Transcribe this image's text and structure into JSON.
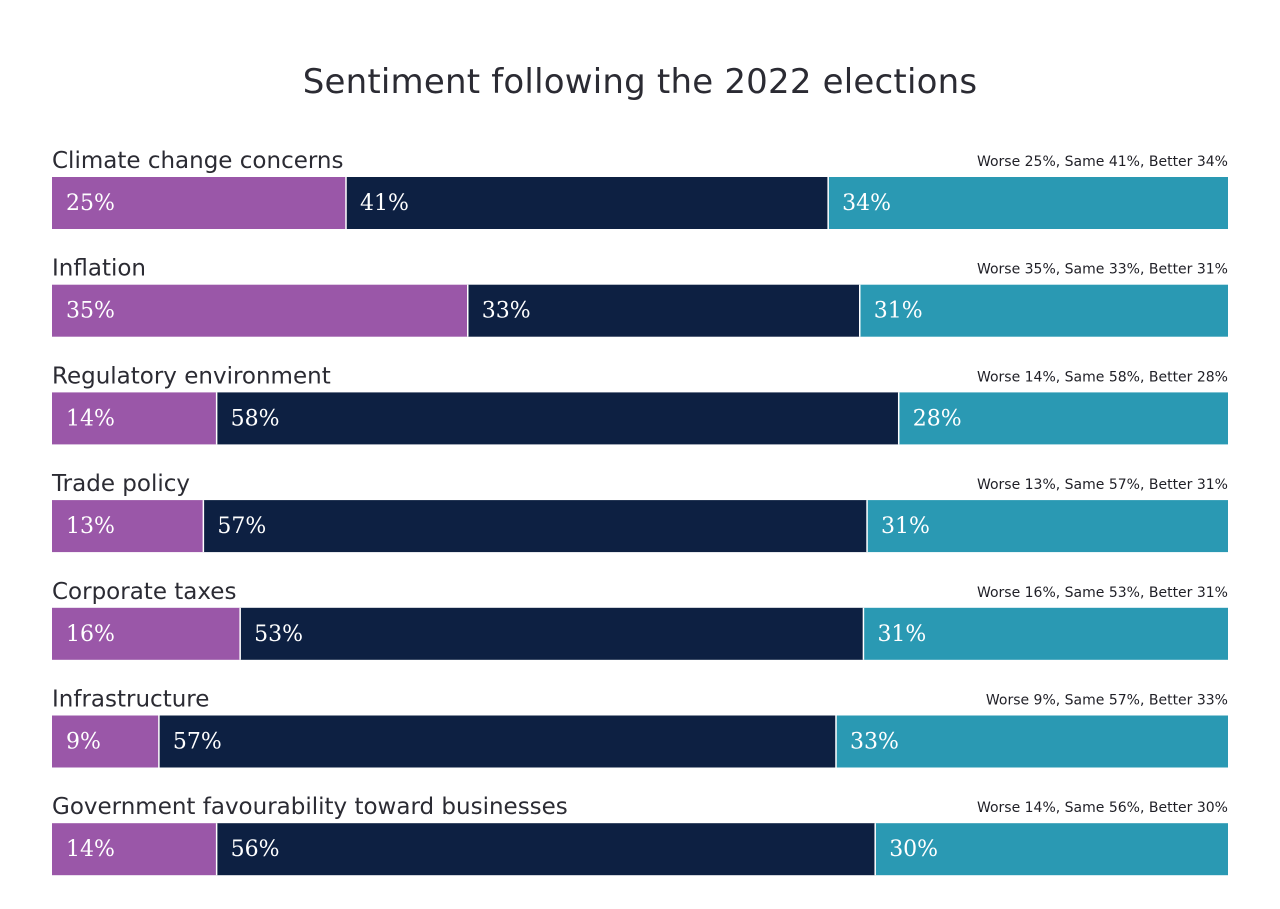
{
  "chart_data": {
    "type": "bar",
    "orientation": "horizontal",
    "stacked": true,
    "title": "Sentiment following the 2022 elections",
    "categories": [
      "Climate change concerns",
      "Inflation",
      "Regulatory environment",
      "Trade policy",
      "Corporate taxes",
      "Infrastructure",
      "Government favourability toward businesses"
    ],
    "series": [
      {
        "name": "Worse",
        "color": "#9a57a8",
        "values": [
          25,
          35,
          14,
          13,
          16,
          9,
          14
        ]
      },
      {
        "name": "Same",
        "color": "#0d2042",
        "values": [
          41,
          33,
          58,
          57,
          53,
          57,
          56
        ]
      },
      {
        "name": "Better",
        "color": "#2a99b3",
        "values": [
          34,
          31,
          28,
          31,
          31,
          33,
          30
        ]
      }
    ],
    "segment_labels": [
      [
        "25%",
        "41%",
        "34%"
      ],
      [
        "35%",
        "33%",
        "31%"
      ],
      [
        "14%",
        "58%",
        "28%"
      ],
      [
        "13%",
        "57%",
        "31%"
      ],
      [
        "16%",
        "53%",
        "31%"
      ],
      [
        "9%",
        "57%",
        "33%"
      ],
      [
        "14%",
        "56%",
        "30%"
      ]
    ],
    "summaries": [
      "Worse 25%, Same 41%, Better 34%",
      "Worse 35%, Same 33%, Better 31%",
      "Worse 14%, Same 58%, Better 28%",
      "Worse 13%, Same 57%, Better 31%",
      "Worse 16%, Same 53%, Better 31%",
      "Worse 9%, Same 57%, Better 33%",
      "Worse 14%, Same 56%, Better 30%"
    ],
    "grid": false,
    "legend": "none"
  }
}
